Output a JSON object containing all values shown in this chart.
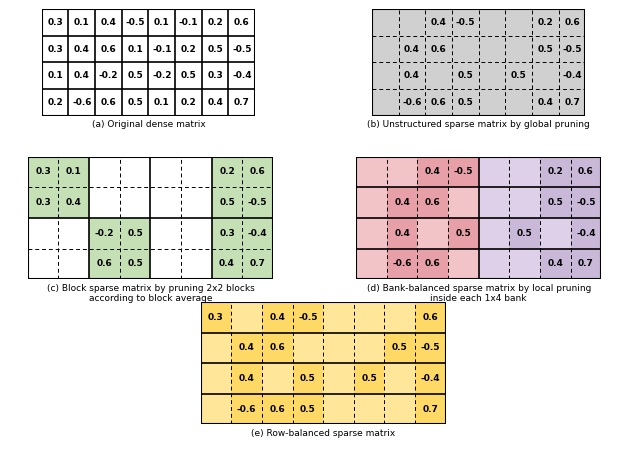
{
  "matrix_a": {
    "values": [
      [
        0.3,
        0.1,
        0.4,
        -0.5,
        0.1,
        -0.1,
        0.2,
        0.6
      ],
      [
        0.3,
        0.4,
        0.6,
        0.1,
        -0.1,
        0.2,
        0.5,
        -0.5
      ],
      [
        0.1,
        0.4,
        -0.2,
        0.5,
        -0.2,
        0.5,
        0.3,
        -0.4
      ],
      [
        0.2,
        -0.6,
        0.6,
        0.5,
        0.1,
        0.2,
        0.4,
        0.7
      ]
    ],
    "title": "(a) Original dense matrix"
  },
  "matrix_b": {
    "values": [
      [
        null,
        null,
        0.4,
        -0.5,
        null,
        null,
        0.2,
        0.6
      ],
      [
        null,
        0.4,
        0.6,
        null,
        null,
        null,
        0.5,
        -0.5
      ],
      [
        null,
        0.4,
        null,
        0.5,
        null,
        0.5,
        null,
        -0.4
      ],
      [
        null,
        -0.6,
        0.6,
        0.5,
        null,
        null,
        0.4,
        0.7
      ]
    ],
    "title": "(b) Unstructured sparse matrix by global pruning"
  },
  "matrix_c": {
    "values": [
      [
        0.3,
        0.1,
        null,
        null,
        null,
        null,
        0.2,
        0.6
      ],
      [
        0.3,
        0.4,
        null,
        null,
        null,
        null,
        0.5,
        -0.5
      ],
      [
        null,
        null,
        -0.2,
        0.5,
        null,
        null,
        0.3,
        -0.4
      ],
      [
        null,
        null,
        0.6,
        0.5,
        null,
        null,
        0.4,
        0.7
      ]
    ],
    "title": "(c) Block sparse matrix by pruning 2x2 blocks\naccording to block average"
  },
  "matrix_d": {
    "values": [
      [
        null,
        null,
        0.4,
        -0.5,
        null,
        null,
        0.2,
        0.6
      ],
      [
        null,
        0.4,
        0.6,
        null,
        null,
        null,
        0.5,
        -0.5
      ],
      [
        null,
        0.4,
        null,
        0.5,
        null,
        0.5,
        null,
        -0.4
      ],
      [
        null,
        -0.6,
        0.6,
        null,
        null,
        null,
        0.4,
        0.7
      ]
    ],
    "title": "(d) Bank-balanced sparse matrix by local pruning\ninside each 1x4 bank"
  },
  "matrix_e": {
    "values": [
      [
        0.3,
        null,
        0.4,
        -0.5,
        null,
        null,
        null,
        0.6
      ],
      [
        null,
        0.4,
        0.6,
        null,
        null,
        null,
        0.5,
        -0.5
      ],
      [
        null,
        0.4,
        null,
        0.5,
        null,
        0.5,
        null,
        -0.4
      ],
      [
        null,
        -0.6,
        0.6,
        0.5,
        null,
        null,
        null,
        0.7
      ]
    ],
    "title": "(e) Row-balanced sparse matrix"
  },
  "bg_white": "#ffffff",
  "bg_gray": "#d0d0d0",
  "bg_green_light": "#e2efda",
  "bg_green": "#c5e0b4",
  "bg_pink": "#e8a0a8",
  "bg_pink_light": "#f2c4c8",
  "bg_purple": "#c9b8d8",
  "bg_purple_light": "#ddd0e8",
  "bg_yellow": "#ffd966",
  "bg_yellow_light": "#ffe699"
}
